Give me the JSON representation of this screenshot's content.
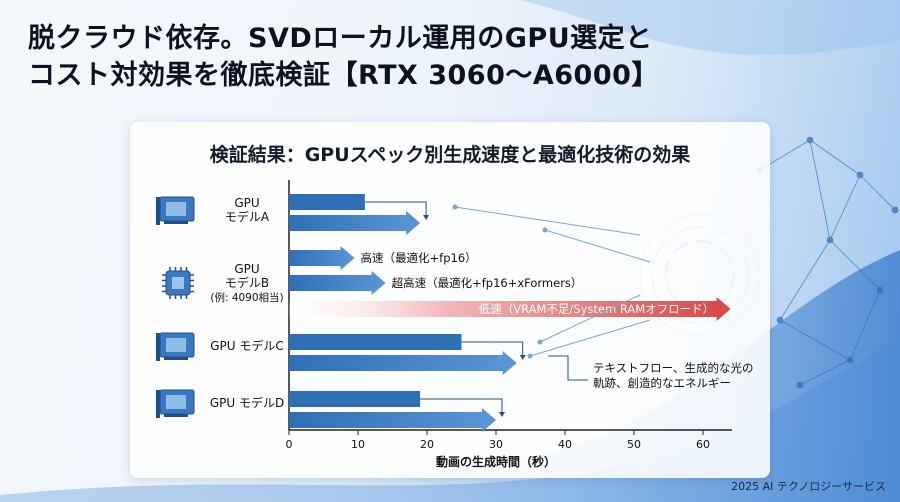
{
  "title": {
    "line1": "脱クラウド依存。SVDローカル運用のGPU選定と",
    "line2": "コスト対効果を徹底検証【RTX 3060〜A6000】"
  },
  "footer": "2025 AI テクノロジーサービス",
  "colors": {
    "bar": "#2f6fb5",
    "bar_light": "#5b97d6",
    "slow_bar": "#d64545",
    "axis": "#222222",
    "connector": "#7aa6d6"
  },
  "icons": [
    "gpu-card-icon",
    "chip-icon",
    "gpu-card-icon",
    "gpu-card-icon"
  ],
  "chart_data": {
    "type": "bar",
    "title": "検証結果：GPUスペック別生成速度と最適化技術の効果",
    "xlabel": "動画の生成時間（秒）",
    "xlim": [
      0,
      60
    ],
    "xticks": [
      0,
      10,
      20,
      30,
      40,
      50,
      60
    ],
    "grid": false,
    "categories": [
      {
        "label_lines": [
          "GPU",
          "モデルA"
        ],
        "icon": "gpu-card-icon"
      },
      {
        "label_lines": [
          "GPU",
          "モデルB",
          "(例: 4090相当)"
        ],
        "icon": "chip-icon"
      },
      {
        "label_lines": [
          "GPU モデルC"
        ],
        "icon": "gpu-card-icon"
      },
      {
        "label_lines": [
          "GPU モデルD"
        ],
        "icon": "gpu-card-icon"
      }
    ],
    "bars": [
      {
        "category": 0,
        "value": 11,
        "style": "plain"
      },
      {
        "category": 0,
        "value": 19,
        "style": "arrow"
      },
      {
        "category": 1,
        "value": 9.5,
        "style": "arrow",
        "label": "高速（最適化+fp16）"
      },
      {
        "category": 1,
        "value": 14,
        "style": "arrow",
        "label": "超高速（最適化+fp16+xFormers）"
      },
      {
        "category": 1,
        "value": 64,
        "style": "slow-arrow",
        "label": "低速（VRAM不足/System RAMオフロード）"
      },
      {
        "category": 2,
        "value": 25,
        "style": "plain"
      },
      {
        "category": 2,
        "value": 33,
        "style": "arrow"
      },
      {
        "category": 3,
        "value": 19,
        "style": "plain"
      },
      {
        "category": 3,
        "value": 30,
        "style": "arrow"
      }
    ],
    "annotations": [
      {
        "text_lines": [
          "テキストフロー、生成的な光の",
          "軌跡、創造的なエネルギー"
        ]
      }
    ]
  }
}
